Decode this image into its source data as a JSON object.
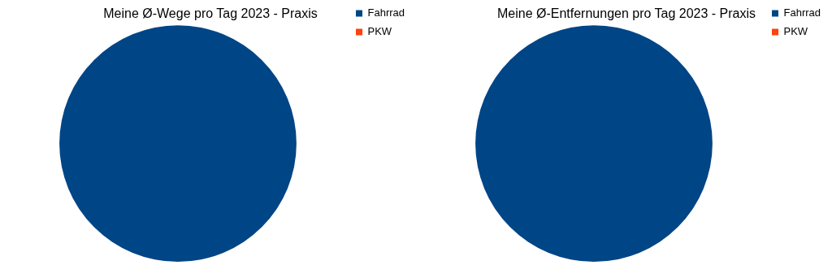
{
  "chart_data": [
    {
      "type": "pie",
      "title": "Meine Ø-Wege pro Tag 2023 - Praxis",
      "categories": [
        "Fahrrad",
        "PKW"
      ],
      "values": [
        100,
        0
      ],
      "colors": [
        "#004586",
        "#ff420e"
      ],
      "legend": "top right"
    },
    {
      "type": "pie",
      "title": "Meine Ø-Entfernungen pro Tag 2023 - Praxis",
      "categories": [
        "Fahrrad",
        "PKW"
      ],
      "values": [
        100,
        0
      ],
      "colors": [
        "#004586",
        "#ff420e"
      ],
      "legend": "top right"
    }
  ]
}
